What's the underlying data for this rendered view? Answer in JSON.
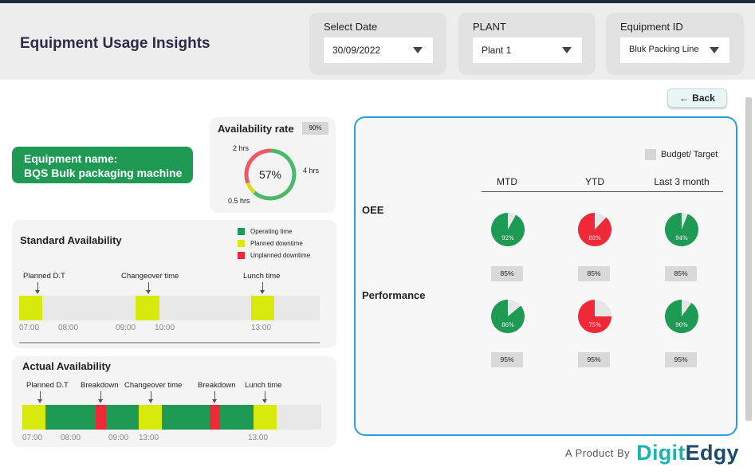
{
  "app": {
    "title": "Equipment Usage Insights"
  },
  "filters": {
    "date": {
      "label": "Select Date",
      "value": "30/09/2022"
    },
    "plant": {
      "label": "PLANT",
      "value": "Plant 1"
    },
    "equipment": {
      "label": "Equipment ID",
      "value": "Bluk Packing Line"
    }
  },
  "back_button": {
    "label": "Back"
  },
  "equipment": {
    "name_label": "Equipment name:",
    "name": "BQS Bulk packaging machine"
  },
  "availability_rate": {
    "title": "Availability rate",
    "target": "90%",
    "value_label": "57%",
    "segments": [
      {
        "label": "4 hrs",
        "hours": 4,
        "color": "#4cb86a"
      },
      {
        "label": "0.5 hrs",
        "hours": 0.5,
        "color": "#d4dc2a"
      },
      {
        "label": "2 hrs",
        "hours": 2,
        "color": "#ee5a61"
      }
    ]
  },
  "legend": [
    {
      "label": "Operating time",
      "color": "#1f9a55"
    },
    {
      "label": "Planned downtime",
      "color": "#d8ea0c"
    },
    {
      "label": "Unplanned downtime",
      "color": "#ee2a39"
    }
  ],
  "standard_availability": {
    "title": "Standard Availability",
    "events": [
      "Planned D.T",
      "Changeover time",
      "Lunch time"
    ],
    "ticks": [
      "07:00",
      "08:00",
      "09:00",
      "10:00",
      "13:00"
    ]
  },
  "actual_availability": {
    "title": "Actual Availability",
    "events": [
      "Planned D.T",
      "Breakdown",
      "Changeover time",
      "Breakdown",
      "Lunch time"
    ],
    "ticks": [
      "07:00",
      "08:00",
      "09:00",
      "13:00",
      "13:00"
    ]
  },
  "kpis": {
    "budget_label": "Budget/ Target",
    "columns": [
      "MTD",
      "YTD",
      "Last 3 month"
    ],
    "rows": [
      {
        "label": "OEE",
        "values": [
          {
            "label": "92%",
            "value": 92,
            "color": "#1f9a55"
          },
          {
            "label": "88%",
            "value": 88,
            "color": "#ee2a39"
          },
          {
            "label": "94%",
            "value": 94,
            "color": "#1f9a55"
          }
        ],
        "targets": [
          "85%",
          "85%",
          "85%"
        ]
      },
      {
        "label": "Performance",
        "values": [
          {
            "label": "86%",
            "value": 86,
            "color": "#1f9a55"
          },
          {
            "label": "75%",
            "value": 75,
            "color": "#ee2a39"
          },
          {
            "label": "90%",
            "value": 90,
            "color": "#1f9a55"
          }
        ],
        "targets": [
          "95%",
          "95%",
          "95%"
        ]
      }
    ]
  },
  "footer": {
    "by": "A Product By",
    "brand_part1": "Digit",
    "brand_part2": "Edgy"
  }
}
